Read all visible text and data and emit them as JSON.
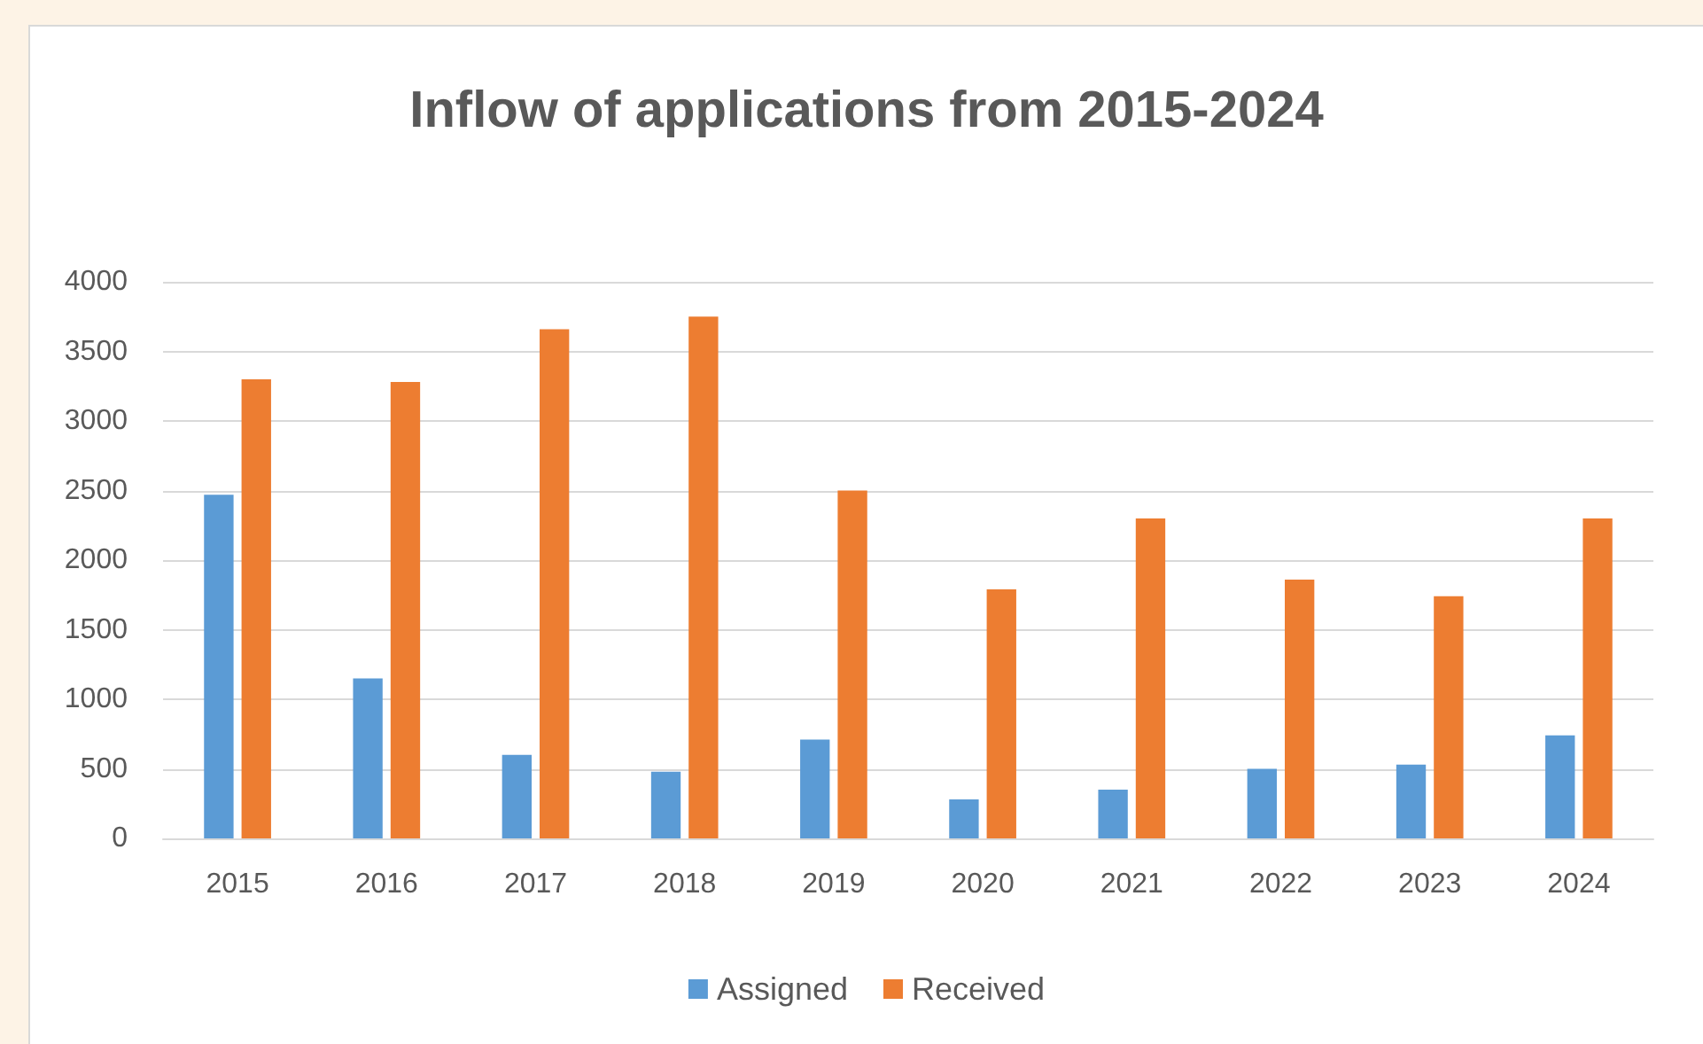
{
  "chart_data": {
    "type": "bar",
    "title": "Inflow of applications from 2015-2024",
    "categories": [
      "2015",
      "2016",
      "2017",
      "2018",
      "2019",
      "2020",
      "2021",
      "2022",
      "2023",
      "2024"
    ],
    "series": [
      {
        "name": "Assigned",
        "color": "#5b9bd5",
        "values": [
          2470,
          1150,
          600,
          480,
          710,
          280,
          350,
          500,
          530,
          740
        ]
      },
      {
        "name": "Received",
        "color": "#ed7d31",
        "values": [
          3300,
          3280,
          3660,
          3750,
          2500,
          1790,
          2300,
          1860,
          1740,
          2300
        ]
      }
    ],
    "ylim": [
      0,
      4000
    ],
    "yticks": [
      0,
      500,
      1000,
      1500,
      2000,
      2500,
      3000,
      3500,
      4000
    ],
    "grid": "y",
    "legend": "bottom"
  }
}
